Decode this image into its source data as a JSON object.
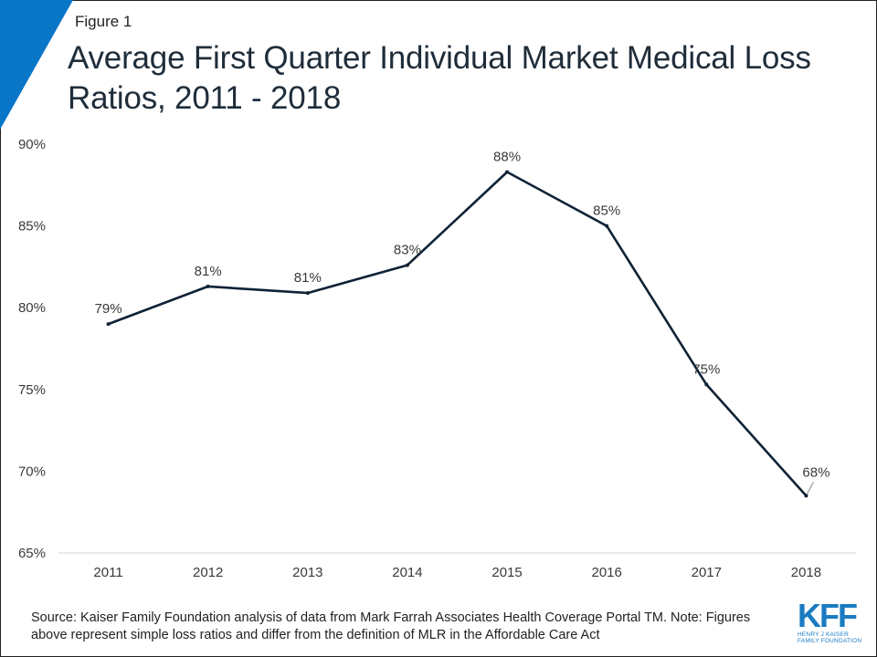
{
  "header": {
    "figure_label": "Figure 1",
    "title": "Average First Quarter Individual Market Medical Loss Ratios, 2011 - 2018"
  },
  "colors": {
    "line": "#0f2236",
    "accent": "#0a76c8"
  },
  "chart_data": {
    "type": "line",
    "title": "Average First Quarter Individual Market Medical Loss Ratios, 2011 - 2018",
    "xlabel": "",
    "ylabel": "",
    "categories": [
      "2011",
      "2012",
      "2013",
      "2014",
      "2015",
      "2016",
      "2017",
      "2018"
    ],
    "series": [
      {
        "values": [
          79,
          81.3,
          80.9,
          82.6,
          88.3,
          85,
          75.3,
          68.5
        ],
        "labels": [
          "79%",
          "81%",
          "81%",
          "83%",
          "88%",
          "85%",
          "75%",
          "68%"
        ]
      }
    ],
    "ylim": [
      65,
      90
    ],
    "yticks": [
      65,
      70,
      75,
      80,
      85,
      90
    ],
    "ytick_labels": [
      "65%",
      "70%",
      "75%",
      "80%",
      "85%",
      "90%"
    ],
    "grid": false,
    "legend": "none"
  },
  "footer": {
    "source": "Source: Kaiser Family Foundation analysis of data from Mark Farrah Associates Health Coverage Portal TM. Note: Figures above represent simple loss ratios and differ from the definition of MLR in the Affordable Care Act"
  },
  "logo": {
    "mark": "KFF",
    "line1": "HENRY J KAISER",
    "line2": "FAMILY FOUNDATION"
  }
}
